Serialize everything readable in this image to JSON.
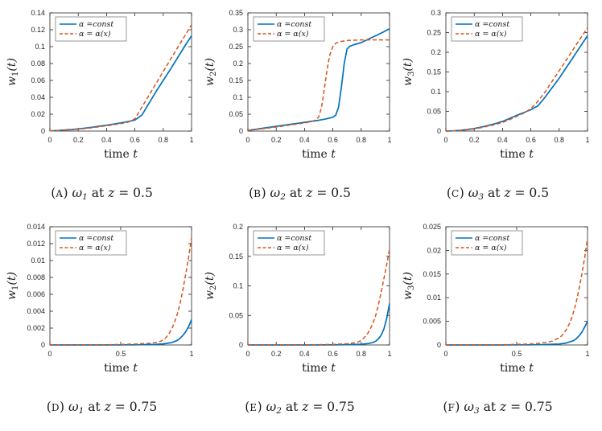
{
  "palette": {
    "series_blue": "#0072BD",
    "series_orange": "#D95319",
    "axis": "#262626",
    "legend_border": "#8c8c8c",
    "text": "#1a1a1a"
  },
  "legend": {
    "entries": [
      {
        "label": "α =const",
        "color": "#0072BD",
        "dash": "solid"
      },
      {
        "label": "α = α(x)",
        "color": "#D95319",
        "dash": "dashed"
      }
    ],
    "position": "upper-left"
  },
  "chart_data": [
    {
      "id": "A",
      "type": "line",
      "xlabel": "time t",
      "ylabel": "w_1(t)",
      "xlim": [
        0,
        1
      ],
      "ylim": [
        0,
        0.14
      ],
      "xticks": [
        0,
        0.2,
        0.4,
        0.6,
        0.8,
        1
      ],
      "yticks": [
        0,
        0.02,
        0.04,
        0.06,
        0.08,
        0.1,
        0.12,
        0.14
      ],
      "grid": false,
      "legend_position": "upper-left",
      "series": [
        {
          "name": "α =const",
          "color": "#0072BD",
          "dash": "solid",
          "x": [
            0,
            0.05,
            0.1,
            0.15,
            0.2,
            0.25,
            0.3,
            0.35,
            0.4,
            0.45,
            0.5,
            0.55,
            0.6,
            0.65,
            0.7,
            0.75,
            0.8,
            0.85,
            0.9,
            0.95,
            1
          ],
          "y": [
            0.0003,
            0.0007,
            0.0012,
            0.0018,
            0.0026,
            0.0035,
            0.0046,
            0.0058,
            0.007,
            0.0083,
            0.0097,
            0.0112,
            0.013,
            0.019,
            0.033,
            0.047,
            0.06,
            0.073,
            0.0865,
            0.1,
            0.113
          ]
        },
        {
          "name": "α = α(x)",
          "color": "#D95319",
          "dash": "dashed",
          "x": [
            0,
            0.05,
            0.1,
            0.15,
            0.2,
            0.25,
            0.3,
            0.35,
            0.4,
            0.45,
            0.5,
            0.55,
            0.6,
            0.65,
            0.7,
            0.75,
            0.8,
            0.85,
            0.9,
            0.95,
            1
          ],
          "y": [
            0.0002,
            0.0006,
            0.001,
            0.0015,
            0.0022,
            0.003,
            0.004,
            0.0051,
            0.0063,
            0.0075,
            0.0089,
            0.0104,
            0.0145,
            0.0285,
            0.0425,
            0.0565,
            0.0705,
            0.0845,
            0.0985,
            0.112,
            0.126
          ]
        }
      ]
    },
    {
      "id": "B",
      "type": "line",
      "xlabel": "time t",
      "ylabel": "w_2(t)",
      "xlim": [
        0,
        1
      ],
      "ylim": [
        0,
        0.35
      ],
      "xticks": [
        0,
        0.2,
        0.4,
        0.6,
        0.8,
        1
      ],
      "yticks": [
        0,
        0.05,
        0.1,
        0.15,
        0.2,
        0.25,
        0.3,
        0.35
      ],
      "grid": false,
      "legend_position": "upper-left",
      "series": [
        {
          "name": "α =const",
          "color": "#0072BD",
          "dash": "solid",
          "x": [
            0,
            0.1,
            0.2,
            0.3,
            0.4,
            0.5,
            0.55,
            0.6,
            0.62,
            0.64,
            0.66,
            0.68,
            0.7,
            0.72,
            0.75,
            0.8,
            0.85,
            0.9,
            0.95,
            1
          ],
          "y": [
            0.002,
            0.008,
            0.014,
            0.02,
            0.026,
            0.032,
            0.036,
            0.041,
            0.047,
            0.07,
            0.13,
            0.2,
            0.243,
            0.251,
            0.256,
            0.262,
            0.272,
            0.282,
            0.292,
            0.303
          ]
        },
        {
          "name": "α = α(x)",
          "color": "#D95319",
          "dash": "dashed",
          "x": [
            0,
            0.1,
            0.2,
            0.3,
            0.4,
            0.45,
            0.48,
            0.5,
            0.52,
            0.54,
            0.56,
            0.58,
            0.6,
            0.62,
            0.65,
            0.7,
            0.75,
            0.8,
            0.9,
            1
          ],
          "y": [
            0.002,
            0.007,
            0.012,
            0.018,
            0.024,
            0.028,
            0.033,
            0.042,
            0.07,
            0.125,
            0.185,
            0.228,
            0.25,
            0.26,
            0.265,
            0.268,
            0.269,
            0.27,
            0.27,
            0.27
          ]
        }
      ]
    },
    {
      "id": "C",
      "type": "line",
      "xlabel": "time t",
      "ylabel": "w_3(t)",
      "xlim": [
        0,
        1
      ],
      "ylim": [
        0,
        0.3
      ],
      "xticks": [
        0,
        0.2,
        0.4,
        0.6,
        0.8,
        1
      ],
      "yticks": [
        0,
        0.05,
        0.1,
        0.15,
        0.2,
        0.25,
        0.3
      ],
      "grid": false,
      "legend_position": "upper-left",
      "series": [
        {
          "name": "α =const",
          "color": "#0072BD",
          "dash": "solid",
          "x": [
            0,
            0.05,
            0.1,
            0.15,
            0.2,
            0.25,
            0.3,
            0.35,
            0.4,
            0.45,
            0.5,
            0.55,
            0.6,
            0.65,
            0.7,
            0.75,
            0.8,
            0.85,
            0.9,
            0.95,
            1
          ],
          "y": [
            0,
            0.0006,
            0.0018,
            0.0038,
            0.0065,
            0.01,
            0.0145,
            0.019,
            0.0245,
            0.032,
            0.04,
            0.047,
            0.054,
            0.064,
            0.086,
            0.11,
            0.134,
            0.161,
            0.188,
            0.215,
            0.242
          ]
        },
        {
          "name": "α = α(x)",
          "color": "#D95319",
          "dash": "dashed",
          "x": [
            0,
            0.05,
            0.1,
            0.15,
            0.2,
            0.25,
            0.3,
            0.35,
            0.4,
            0.45,
            0.5,
            0.55,
            0.6,
            0.65,
            0.7,
            0.75,
            0.8,
            0.85,
            0.9,
            0.95,
            1
          ],
          "y": [
            0,
            0.0005,
            0.0015,
            0.0033,
            0.0057,
            0.0088,
            0.0128,
            0.017,
            0.022,
            0.029,
            0.0375,
            0.0455,
            0.0565,
            0.0755,
            0.099,
            0.126,
            0.153,
            0.18,
            0.208,
            0.235,
            0.262
          ]
        }
      ]
    },
    {
      "id": "D",
      "type": "line",
      "xlabel": "time t",
      "ylabel": "w_1(t)",
      "xlim": [
        0,
        1
      ],
      "ylim": [
        0,
        0.014
      ],
      "xticks": [
        0,
        0.5,
        1
      ],
      "yticks": [
        0,
        0.002,
        0.004,
        0.006,
        0.008,
        0.01,
        0.012,
        0.014
      ],
      "grid": false,
      "legend_position": "upper-left",
      "series": [
        {
          "name": "α =const",
          "color": "#0072BD",
          "dash": "solid",
          "x": [
            0,
            0.2,
            0.4,
            0.6,
            0.7,
            0.75,
            0.8,
            0.85,
            0.88,
            0.9,
            0.92,
            0.94,
            0.96,
            0.98,
            1
          ],
          "y": [
            0,
            0,
            0,
            2e-05,
            5e-05,
            8e-05,
            0.00013,
            0.00025,
            0.0004,
            0.00055,
            0.0008,
            0.00115,
            0.0016,
            0.0022,
            0.003
          ]
        },
        {
          "name": "α = α(x)",
          "color": "#D95319",
          "dash": "dashed",
          "x": [
            0,
            0.2,
            0.4,
            0.6,
            0.7,
            0.75,
            0.78,
            0.8,
            0.82,
            0.84,
            0.86,
            0.88,
            0.9,
            0.92,
            0.94,
            0.96,
            0.98,
            1
          ],
          "y": [
            0,
            0,
            2e-05,
            0.0001,
            0.0002,
            0.0003,
            0.00042,
            0.0006,
            0.0009,
            0.0013,
            0.0019,
            0.0027,
            0.0037,
            0.005,
            0.0066,
            0.0085,
            0.0105,
            0.0127
          ]
        }
      ]
    },
    {
      "id": "E",
      "type": "line",
      "xlabel": "time t",
      "ylabel": "w_2(t)",
      "xlim": [
        0,
        1
      ],
      "ylim": [
        0,
        0.2
      ],
      "xticks": [
        0,
        0.2,
        0.4,
        0.6,
        0.8,
        1
      ],
      "yticks": [
        0,
        0.05,
        0.1,
        0.15,
        0.2
      ],
      "grid": false,
      "legend_position": "upper-left",
      "series": [
        {
          "name": "α =const",
          "color": "#0072BD",
          "dash": "solid",
          "x": [
            0,
            0.2,
            0.4,
            0.6,
            0.7,
            0.8,
            0.85,
            0.88,
            0.9,
            0.92,
            0.94,
            0.96,
            0.98,
            1
          ],
          "y": [
            0,
            0,
            0,
            0.0002,
            0.0005,
            0.0012,
            0.0025,
            0.004,
            0.006,
            0.01,
            0.016,
            0.027,
            0.045,
            0.07
          ]
        },
        {
          "name": "α = α(x)",
          "color": "#D95319",
          "dash": "dashed",
          "x": [
            0,
            0.2,
            0.4,
            0.6,
            0.7,
            0.75,
            0.78,
            0.8,
            0.82,
            0.85,
            0.88,
            0.9,
            0.92,
            0.94,
            0.96,
            0.98,
            1
          ],
          "y": [
            0,
            0,
            0.0002,
            0.001,
            0.002,
            0.0035,
            0.005,
            0.008,
            0.012,
            0.021,
            0.035,
            0.048,
            0.066,
            0.088,
            0.112,
            0.136,
            0.162
          ]
        }
      ]
    },
    {
      "id": "F",
      "type": "line",
      "xlabel": "time t",
      "ylabel": "w_3(t)",
      "xlim": [
        0,
        1
      ],
      "ylim": [
        0,
        0.025
      ],
      "xticks": [
        0,
        0.5,
        1
      ],
      "yticks": [
        0,
        0.005,
        0.01,
        0.015,
        0.02,
        0.025
      ],
      "grid": false,
      "legend_position": "upper-left",
      "series": [
        {
          "name": "α =const",
          "color": "#0072BD",
          "dash": "solid",
          "x": [
            0,
            0.2,
            0.4,
            0.6,
            0.7,
            0.8,
            0.85,
            0.9,
            0.92,
            0.94,
            0.96,
            0.98,
            1
          ],
          "y": [
            0,
            0,
            0,
            3e-05,
            8e-05,
            0.0002,
            0.0004,
            0.0009,
            0.0013,
            0.0019,
            0.0027,
            0.0038,
            0.005
          ]
        },
        {
          "name": "α = α(x)",
          "color": "#D95319",
          "dash": "dashed",
          "x": [
            0,
            0.2,
            0.4,
            0.6,
            0.7,
            0.75,
            0.8,
            0.82,
            0.85,
            0.88,
            0.9,
            0.92,
            0.94,
            0.96,
            0.98,
            1
          ],
          "y": [
            0,
            0,
            3e-05,
            0.0002,
            0.0005,
            0.0008,
            0.0015,
            0.002,
            0.0032,
            0.005,
            0.0068,
            0.009,
            0.0118,
            0.015,
            0.0185,
            0.0225
          ]
        }
      ]
    }
  ],
  "captions": [
    {
      "parts": [
        {
          "t": "(",
          "s": "u"
        },
        {
          "t": "A",
          "s": "sc"
        },
        {
          "t": ") ",
          "s": "u"
        },
        {
          "t": "ω",
          "s": "i"
        },
        {
          "t": "1",
          "s": "sub"
        },
        {
          "t": " at ",
          "s": "u"
        },
        {
          "t": "z",
          "s": "i"
        },
        {
          "t": " = 0.5",
          "s": "u"
        }
      ]
    },
    {
      "parts": [
        {
          "t": "(",
          "s": "u"
        },
        {
          "t": "B",
          "s": "sc"
        },
        {
          "t": ") ",
          "s": "u"
        },
        {
          "t": "ω",
          "s": "i"
        },
        {
          "t": "2",
          "s": "sub"
        },
        {
          "t": " at ",
          "s": "u"
        },
        {
          "t": "z",
          "s": "i"
        },
        {
          "t": " = 0.5",
          "s": "u"
        }
      ]
    },
    {
      "parts": [
        {
          "t": "(",
          "s": "u"
        },
        {
          "t": "C",
          "s": "sc"
        },
        {
          "t": ") ",
          "s": "u"
        },
        {
          "t": "ω",
          "s": "i"
        },
        {
          "t": "3",
          "s": "sub"
        },
        {
          "t": " at ",
          "s": "u"
        },
        {
          "t": "z",
          "s": "i"
        },
        {
          "t": " = 0.5",
          "s": "u"
        }
      ]
    },
    {
      "parts": [
        {
          "t": "(",
          "s": "u"
        },
        {
          "t": "D",
          "s": "sc"
        },
        {
          "t": ") ",
          "s": "u"
        },
        {
          "t": "ω",
          "s": "i"
        },
        {
          "t": "1",
          "s": "sub"
        },
        {
          "t": " at ",
          "s": "u"
        },
        {
          "t": "z",
          "s": "i"
        },
        {
          "t": " = 0.75",
          "s": "u"
        }
      ]
    },
    {
      "parts": [
        {
          "t": "(",
          "s": "u"
        },
        {
          "t": "E",
          "s": "sc"
        },
        {
          "t": ") ",
          "s": "u"
        },
        {
          "t": "ω",
          "s": "i"
        },
        {
          "t": "2",
          "s": "sub"
        },
        {
          "t": " at ",
          "s": "u"
        },
        {
          "t": "z",
          "s": "i"
        },
        {
          "t": " = 0.75",
          "s": "u"
        }
      ]
    },
    {
      "parts": [
        {
          "t": "(",
          "s": "u"
        },
        {
          "t": "F",
          "s": "sc"
        },
        {
          "t": ") ",
          "s": "u"
        },
        {
          "t": "ω",
          "s": "i"
        },
        {
          "t": "3",
          "s": "sub"
        },
        {
          "t": " at ",
          "s": "u"
        },
        {
          "t": "z",
          "s": "i"
        },
        {
          "t": " = 0.75",
          "s": "u"
        }
      ]
    }
  ]
}
